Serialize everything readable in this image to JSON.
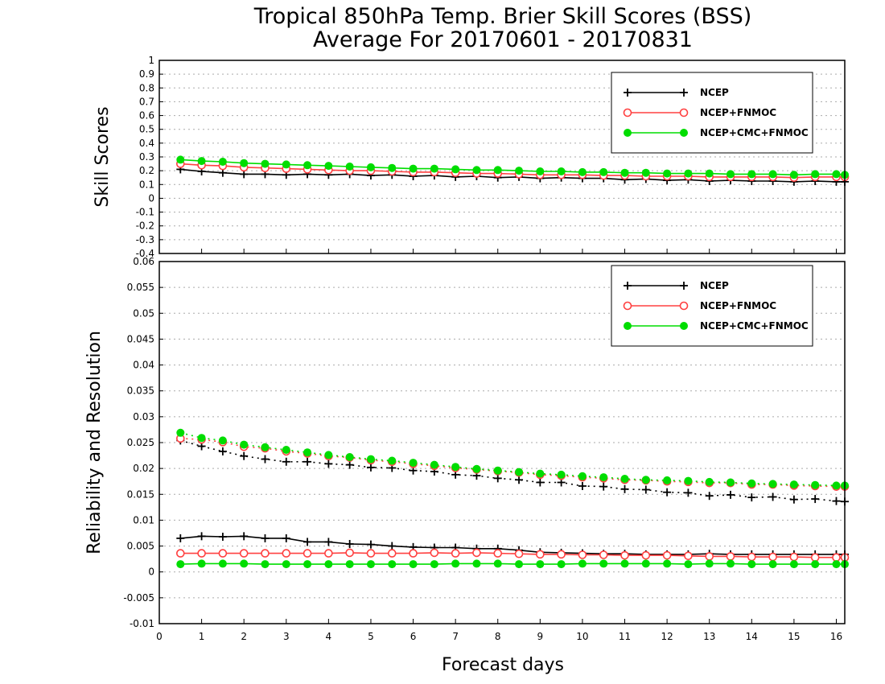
{
  "title": {
    "line1": "Tropical 850hPa Temp. Brier Skill Scores (BSS)",
    "line2": "Average For 20170601 - 20170831"
  },
  "x_axis": {
    "label": "Forecast days",
    "range": [
      0,
      16.2
    ],
    "ticks": [
      0,
      1,
      2,
      3,
      4,
      5,
      6,
      7,
      8,
      9,
      10,
      11,
      12,
      13,
      14,
      15,
      16
    ]
  },
  "colors": {
    "NCEP": "#000000",
    "NCEP+FNMOC": "#ff4040",
    "NCEP+CMC+FNMOC": "#00dd00"
  },
  "chart_data": [
    {
      "type": "line",
      "panel": "top",
      "ylabel": "Skill Scores",
      "ylim": [
        -0.4,
        1.0
      ],
      "yticks": [
        "1",
        "0.9",
        "0.8",
        "0.7",
        "0.6",
        "0.5",
        "0.4",
        "0.3",
        "0.2",
        "0.1",
        "0",
        "-0.1",
        "-0.2",
        "-0.3",
        "-0.4"
      ],
      "grid": true,
      "legend": {
        "placement": "top-right",
        "entries": [
          "NCEP",
          "NCEP+FNMOC",
          "NCEP+CMC+FNMOC"
        ]
      },
      "x": [
        0.5,
        1,
        1.5,
        2,
        2.5,
        3,
        3.5,
        4,
        4.5,
        5,
        5.5,
        6,
        6.5,
        7,
        7.5,
        8,
        8.5,
        9,
        9.5,
        10,
        10.5,
        11,
        11.5,
        12,
        12.5,
        13,
        13.5,
        14,
        14.5,
        15,
        15.5,
        16,
        16.2
      ],
      "series": [
        {
          "name": "NCEP",
          "marker": "plus",
          "line": "solid",
          "values": [
            0.21,
            0.195,
            0.185,
            0.175,
            0.175,
            0.17,
            0.175,
            0.17,
            0.175,
            0.165,
            0.17,
            0.16,
            0.165,
            0.155,
            0.16,
            0.15,
            0.155,
            0.145,
            0.15,
            0.145,
            0.145,
            0.135,
            0.14,
            0.13,
            0.135,
            0.125,
            0.13,
            0.125,
            0.125,
            0.12,
            0.125,
            0.12,
            0.12
          ]
        },
        {
          "name": "NCEP+FNMOC",
          "marker": "open-circle",
          "line": "solid",
          "values": [
            0.25,
            0.24,
            0.235,
            0.225,
            0.22,
            0.215,
            0.21,
            0.205,
            0.2,
            0.2,
            0.195,
            0.19,
            0.19,
            0.185,
            0.18,
            0.18,
            0.175,
            0.17,
            0.17,
            0.17,
            0.165,
            0.165,
            0.16,
            0.16,
            0.16,
            0.155,
            0.155,
            0.155,
            0.155,
            0.15,
            0.155,
            0.155,
            0.155
          ]
        },
        {
          "name": "NCEP+CMC+FNMOC",
          "marker": "filled-circle",
          "line": "solid",
          "values": [
            0.28,
            0.27,
            0.265,
            0.255,
            0.25,
            0.245,
            0.24,
            0.235,
            0.23,
            0.225,
            0.22,
            0.215,
            0.215,
            0.21,
            0.205,
            0.205,
            0.2,
            0.195,
            0.195,
            0.19,
            0.19,
            0.185,
            0.185,
            0.18,
            0.18,
            0.18,
            0.175,
            0.175,
            0.175,
            0.17,
            0.175,
            0.175,
            0.17
          ]
        }
      ]
    },
    {
      "type": "line",
      "panel": "bottom",
      "ylabel": "Reliability and Resolution",
      "ylim": [
        -0.01,
        0.06
      ],
      "yticks": [
        "0.06",
        "0.055",
        "0.05",
        "0.045",
        "0.04",
        "0.035",
        "0.03",
        "0.025",
        "0.02",
        "0.015",
        "0.01",
        "0.005",
        "0",
        "-0.005",
        "-0.01"
      ],
      "grid": true,
      "legend": {
        "placement": "top-right",
        "entries": [
          "NCEP",
          "NCEP+FNMOC",
          "NCEP+CMC+FNMOC"
        ]
      },
      "x": [
        0.5,
        1,
        1.5,
        2,
        2.5,
        3,
        3.5,
        4,
        4.5,
        5,
        5.5,
        6,
        6.5,
        7,
        7.5,
        8,
        8.5,
        9,
        9.5,
        10,
        10.5,
        11,
        11.5,
        12,
        12.5,
        13,
        13.5,
        14,
        14.5,
        15,
        15.5,
        16,
        16.2
      ],
      "series": [
        {
          "name": "NCEP",
          "kind": "reliability",
          "marker": "plus",
          "line": "solid",
          "values": [
            0.0065,
            0.0069,
            0.0068,
            0.0069,
            0.0065,
            0.0065,
            0.0058,
            0.0058,
            0.0054,
            0.0053,
            0.005,
            0.0048,
            0.0047,
            0.0047,
            0.0045,
            0.0045,
            0.0042,
            0.0038,
            0.0037,
            0.0036,
            0.0035,
            0.0035,
            0.0034,
            0.0034,
            0.0034,
            0.0035,
            0.0034,
            0.0034,
            0.0034,
            0.0034,
            0.0034,
            0.0034,
            0.0034
          ]
        },
        {
          "name": "NCEP+FNMOC",
          "kind": "reliability",
          "marker": "open-circle",
          "line": "solid",
          "values": [
            0.0036,
            0.0036,
            0.0036,
            0.0036,
            0.0036,
            0.0036,
            0.0036,
            0.0036,
            0.0037,
            0.0036,
            0.0036,
            0.0036,
            0.0037,
            0.0036,
            0.0037,
            0.0036,
            0.0035,
            0.0034,
            0.0034,
            0.0033,
            0.0033,
            0.0032,
            0.0032,
            0.0032,
            0.0031,
            0.003,
            0.003,
            0.0029,
            0.0029,
            0.0029,
            0.0028,
            0.0028,
            0.0028
          ]
        },
        {
          "name": "NCEP+CMC+FNMOC",
          "kind": "reliability",
          "marker": "filled-circle",
          "line": "solid",
          "values": [
            0.0015,
            0.0016,
            0.0016,
            0.0016,
            0.0015,
            0.0015,
            0.0015,
            0.0015,
            0.0015,
            0.0015,
            0.0015,
            0.0015,
            0.0015,
            0.0016,
            0.0016,
            0.0016,
            0.0015,
            0.0015,
            0.0015,
            0.0016,
            0.0016,
            0.0016,
            0.0016,
            0.0016,
            0.0015,
            0.0016,
            0.0016,
            0.0015,
            0.0015,
            0.0015,
            0.0015,
            0.0015,
            0.0015
          ]
        },
        {
          "name": "NCEP",
          "kind": "resolution",
          "marker": "plus",
          "line": "dotted",
          "values": [
            0.0254,
            0.0243,
            0.0233,
            0.0224,
            0.0218,
            0.0213,
            0.0213,
            0.0209,
            0.0207,
            0.0202,
            0.0201,
            0.0196,
            0.0194,
            0.0188,
            0.0186,
            0.0181,
            0.0178,
            0.0173,
            0.0173,
            0.0166,
            0.0165,
            0.016,
            0.0159,
            0.0154,
            0.0153,
            0.0147,
            0.0149,
            0.0144,
            0.0145,
            0.014,
            0.0141,
            0.0137,
            0.0136
          ]
        },
        {
          "name": "NCEP+FNMOC",
          "kind": "resolution",
          "marker": "open-circle",
          "line": "dotted",
          "values": [
            0.0258,
            0.0256,
            0.0251,
            0.0242,
            0.0239,
            0.0233,
            0.0229,
            0.0224,
            0.0221,
            0.0216,
            0.0213,
            0.0209,
            0.0205,
            0.0201,
            0.0198,
            0.0195,
            0.0192,
            0.0188,
            0.0186,
            0.0183,
            0.0181,
            0.0178,
            0.0177,
            0.0175,
            0.0174,
            0.0172,
            0.0172,
            0.0169,
            0.0169,
            0.0167,
            0.0166,
            0.0165,
            0.0165
          ]
        },
        {
          "name": "NCEP+CMC+FNMOC",
          "kind": "resolution",
          "marker": "filled-circle",
          "line": "dotted",
          "values": [
            0.0269,
            0.0259,
            0.0254,
            0.0246,
            0.0241,
            0.0236,
            0.0231,
            0.0226,
            0.0222,
            0.0218,
            0.0215,
            0.0211,
            0.0207,
            0.0203,
            0.0199,
            0.0196,
            0.0193,
            0.019,
            0.0188,
            0.0185,
            0.0183,
            0.018,
            0.0178,
            0.0177,
            0.0176,
            0.0174,
            0.0173,
            0.0171,
            0.017,
            0.0169,
            0.0168,
            0.0167,
            0.0167
          ]
        }
      ]
    }
  ]
}
